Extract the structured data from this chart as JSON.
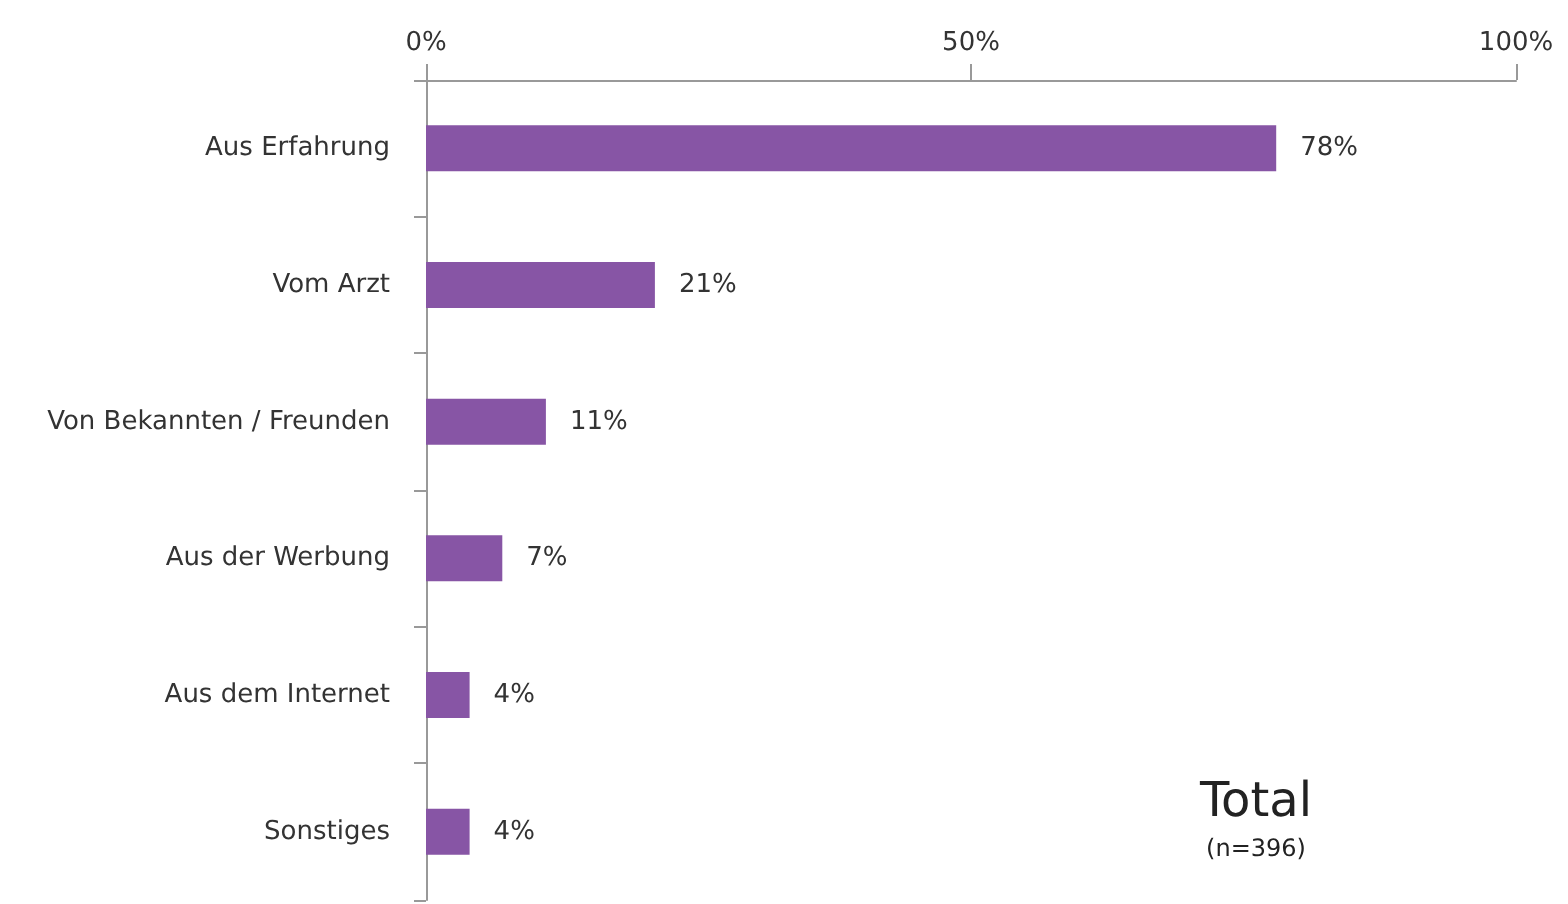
{
  "chart_data": {
    "type": "bar",
    "orientation": "horizontal",
    "categories": [
      "Aus Erfahrung",
      "Vom Arzt",
      "Von Bekannten / Freunden",
      "Aus der Werbung",
      "Aus dem Internet",
      "Sonstiges"
    ],
    "values": [
      78,
      21,
      11,
      7,
      4,
      4
    ],
    "value_labels": [
      "78%",
      "21%",
      "11%",
      "7%",
      "4%",
      "4%"
    ],
    "color": "#8755a5",
    "xlim": [
      0,
      100
    ],
    "xticks": [
      {
        "value": 0,
        "label": "0%"
      },
      {
        "value": 50,
        "label": "50%"
      },
      {
        "value": 100,
        "label": "100%"
      }
    ],
    "grid": false,
    "annotations": [
      "Total",
      "(n=396)"
    ]
  }
}
